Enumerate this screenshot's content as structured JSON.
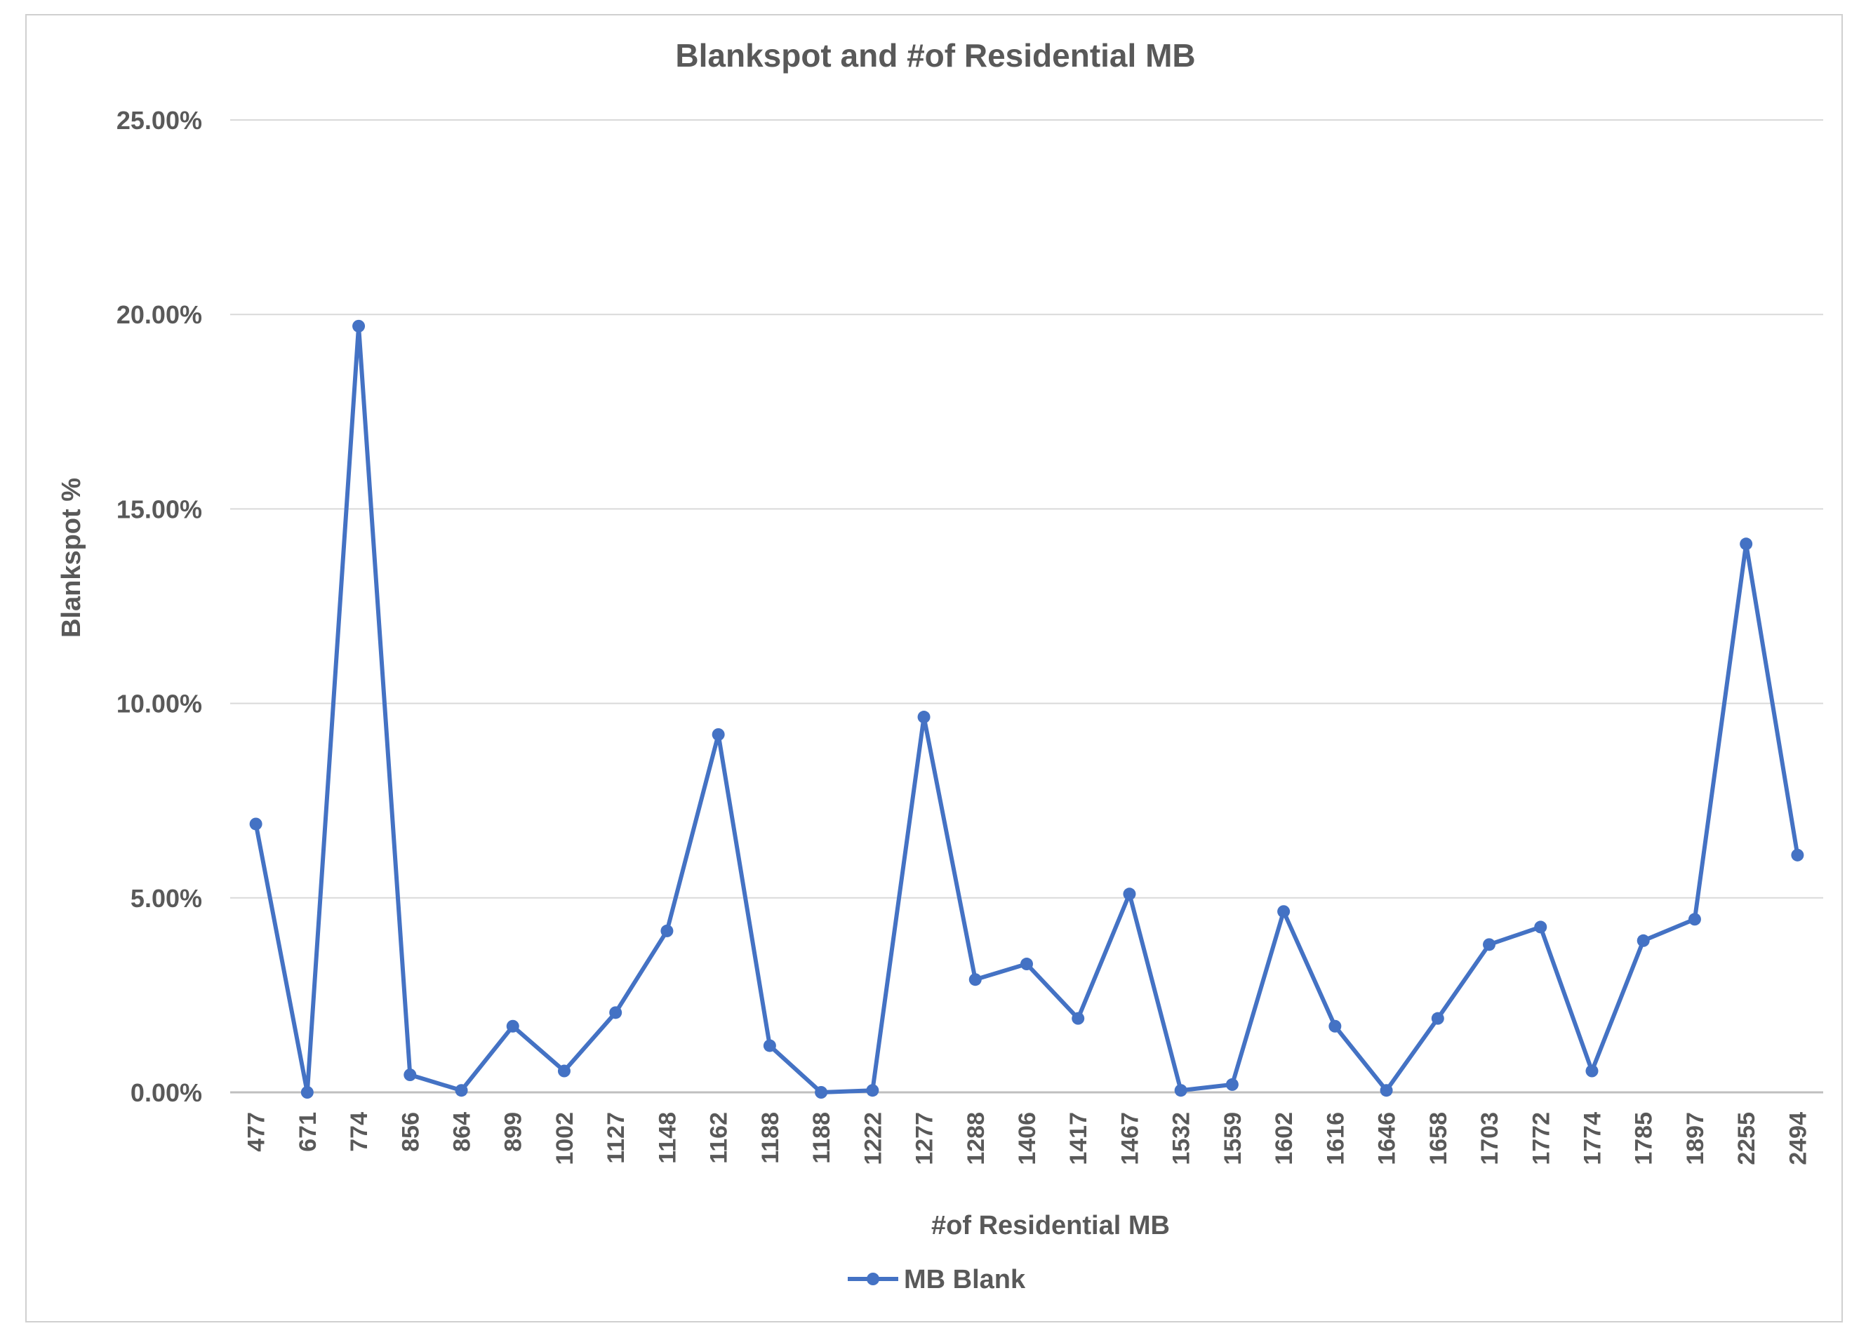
{
  "chart_data": {
    "type": "line",
    "title": "Blankspot and #of Residential MB",
    "xlabel": "#of Residential MB",
    "ylabel": "Blankspot %",
    "ylim": [
      0,
      0.25
    ],
    "y_ticks": [
      "0.00%",
      "5.00%",
      "10.00%",
      "15.00%",
      "20.00%",
      "25.00%"
    ],
    "y_tick_values": [
      0,
      0.05,
      0.1,
      0.15,
      0.2,
      0.25
    ],
    "grid": true,
    "legend_position": "bottom",
    "line_color": "#4472C4",
    "categories": [
      "477",
      "671",
      "774",
      "856",
      "864",
      "899",
      "1002",
      "1127",
      "1148",
      "1162",
      "1188",
      "1188",
      "1222",
      "1277",
      "1288",
      "1406",
      "1417",
      "1467",
      "1532",
      "1559",
      "1602",
      "1616",
      "1646",
      "1658",
      "1703",
      "1772",
      "1774",
      "1785",
      "1897",
      "2255",
      "2494"
    ],
    "series": [
      {
        "name": "MB Blank",
        "values": [
          0.069,
          0.0,
          0.197,
          0.0045,
          0.0005,
          0.017,
          0.0055,
          0.0205,
          0.0415,
          0.092,
          0.012,
          0.0,
          0.0005,
          0.0965,
          0.029,
          0.033,
          0.019,
          0.051,
          0.0005,
          0.002,
          0.0465,
          0.017,
          0.0005,
          0.019,
          0.038,
          0.0425,
          0.0055,
          0.039,
          0.0445,
          0.141,
          0.061
        ]
      }
    ]
  }
}
